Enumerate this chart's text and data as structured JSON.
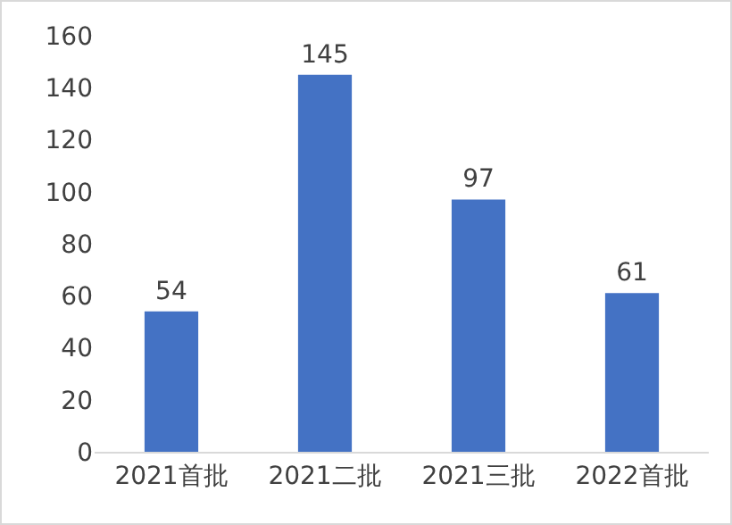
{
  "chart_data": {
    "type": "bar",
    "categories": [
      "2021首批",
      "2021二批",
      "2021三批",
      "2022首批"
    ],
    "values": [
      54,
      145,
      97,
      61
    ],
    "color": "#4472c4",
    "ylim": [
      0,
      160
    ],
    "yticks": [
      0,
      20,
      40,
      60,
      80,
      100,
      120,
      140,
      160
    ],
    "data_labels": true,
    "grid": false,
    "legend": false
  }
}
